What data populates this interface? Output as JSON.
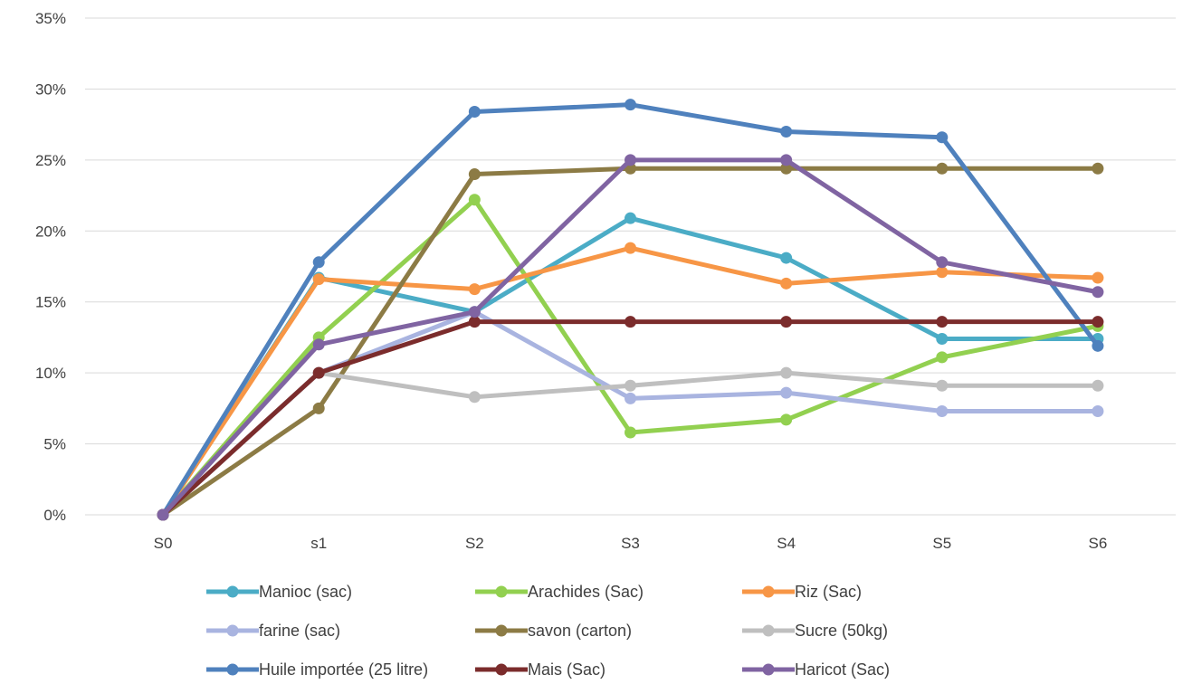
{
  "chart_data": {
    "type": "line",
    "title": "",
    "xlabel": "",
    "ylabel": "",
    "categories": [
      "S0",
      "s1",
      "S2",
      "S3",
      "S4",
      "S5",
      "S6"
    ],
    "y_ticks": [
      "0%",
      "5%",
      "10%",
      "15%",
      "20%",
      "25%",
      "30%",
      "35%"
    ],
    "ylim": [
      0,
      35
    ],
    "grid": true,
    "legend_position": "bottom",
    "series": [
      {
        "name": "Manioc (sac)",
        "color": "#4BACC6",
        "values": [
          0,
          16.7,
          14.3,
          20.9,
          18.1,
          12.4,
          12.4
        ]
      },
      {
        "name": "Arachides (Sac)",
        "color": "#92D050",
        "values": [
          0,
          12.5,
          22.2,
          5.8,
          6.7,
          11.1,
          13.3
        ]
      },
      {
        "name": "Riz  (Sac)",
        "color": "#F79646",
        "values": [
          0,
          16.6,
          15.9,
          18.8,
          16.3,
          17.1,
          16.7
        ]
      },
      {
        "name": "farine (sac)",
        "color": "#A9B4E0",
        "values": [
          0,
          10.0,
          14.3,
          8.2,
          8.6,
          7.3,
          7.3
        ]
      },
      {
        "name": "savon (carton)",
        "color": "#8C7B45",
        "values": [
          0,
          7.5,
          24.0,
          24.4,
          24.4,
          24.4,
          24.4
        ]
      },
      {
        "name": "Sucre (50kg)",
        "color": "#BFBFBF",
        "values": [
          0,
          10.0,
          8.3,
          9.1,
          10.0,
          9.1,
          9.1
        ]
      },
      {
        "name": "Huile importée (25 litre)",
        "color": "#4F81BD",
        "values": [
          0,
          17.8,
          28.4,
          28.9,
          27.0,
          26.6,
          11.9
        ]
      },
      {
        "name": "Mais (Sac)",
        "color": "#7B2C2C",
        "values": [
          0,
          10.0,
          13.6,
          13.6,
          13.6,
          13.6,
          13.6
        ]
      },
      {
        "name": "Haricot (Sac)",
        "color": "#8064A2",
        "values": [
          0,
          12.0,
          14.3,
          25.0,
          25.0,
          17.8,
          15.7
        ]
      }
    ]
  }
}
